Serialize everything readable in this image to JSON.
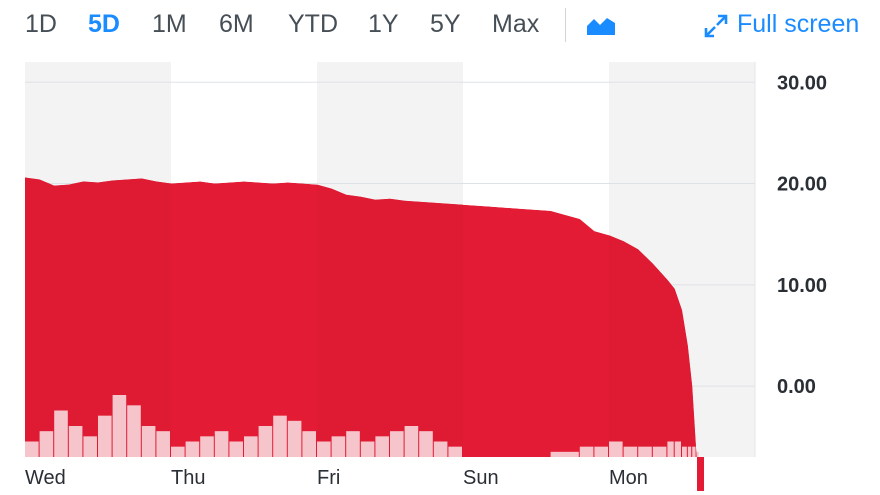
{
  "toolbar": {
    "ranges": [
      "1D",
      "5D",
      "1M",
      "6M",
      "YTD",
      "1Y",
      "5Y",
      "Max"
    ],
    "active_range": "5D",
    "chart_type_icon": "area-chart-icon",
    "fullscreen_icon": "expand-arrows-icon",
    "fullscreen_label": "Full screen"
  },
  "colors": {
    "accent": "#1a8cff",
    "area": "#e41b34",
    "area_dark_band": "#de1b32",
    "volume": "#f6c5cc",
    "band": "#f3f3f4"
  },
  "chart_data": {
    "type": "area",
    "x_tick_labels": [
      "Wed",
      "Thu",
      "Fri",
      "Sun",
      "Mon"
    ],
    "y_tick_labels": [
      "30.00",
      "20.00",
      "10.00",
      "0.00"
    ],
    "ylim": [
      -7,
      32
    ],
    "grid": true,
    "x": [
      0,
      0.1,
      0.2,
      0.3,
      0.4,
      0.5,
      0.6,
      0.7,
      0.8,
      0.9,
      1.0,
      1.1,
      1.2,
      1.3,
      1.4,
      1.5,
      1.6,
      1.7,
      1.8,
      1.9,
      2.0,
      2.1,
      2.2,
      2.3,
      2.4,
      2.5,
      2.6,
      2.7,
      2.8,
      2.9,
      3.0,
      3.2,
      3.4,
      3.6,
      3.8,
      3.9,
      4.0,
      4.1,
      4.2,
      4.3,
      4.4,
      4.45,
      4.5,
      4.54,
      4.57,
      4.6
    ],
    "values": [
      20.6,
      20.4,
      19.8,
      19.9,
      20.2,
      20.1,
      20.3,
      20.4,
      20.5,
      20.2,
      20.0,
      20.1,
      20.2,
      20.0,
      20.1,
      20.2,
      20.1,
      20.0,
      20.1,
      20.0,
      19.9,
      19.5,
      18.9,
      18.7,
      18.4,
      18.5,
      18.3,
      18.2,
      18.1,
      18.0,
      17.9,
      17.7,
      17.5,
      17.3,
      16.5,
      15.3,
      14.9,
      14.3,
      13.5,
      12.1,
      10.5,
      9.6,
      7.5,
      4.0,
      0.0,
      -7.0
    ],
    "volume": [
      3,
      5,
      9,
      6,
      4,
      8,
      12,
      10,
      6,
      5,
      2,
      3,
      4,
      5,
      3,
      4,
      6,
      8,
      7,
      5,
      3,
      4,
      5,
      3,
      4,
      5,
      6,
      5,
      3,
      2,
      0,
      0,
      0,
      1,
      2,
      2,
      3,
      2,
      2,
      2,
      3,
      3,
      2,
      2,
      2,
      1
    ]
  }
}
